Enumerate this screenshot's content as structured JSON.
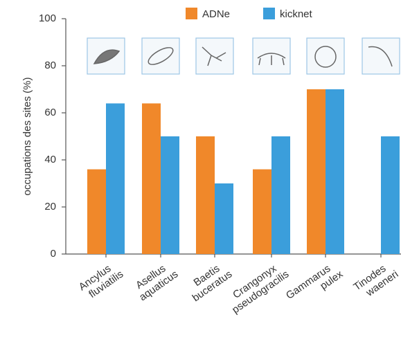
{
  "chart_data": {
    "type": "bar",
    "ylabel": "occupations des sites (%)",
    "categories": [
      "Ancylus fluviatilis",
      "Asellus aquaticus",
      "Baetis buceratus",
      "Crangonyx pseudogracilis",
      "Gammarus pulex",
      "Tinodes waeneri"
    ],
    "series": [
      {
        "name": "ADNe",
        "color": "#f0882a",
        "values": [
          36,
          64,
          50,
          36,
          70,
          0
        ]
      },
      {
        "name": "kicknet",
        "color": "#3b9edb",
        "values": [
          64,
          50,
          30,
          50,
          70,
          50
        ]
      }
    ],
    "ylim": [
      0,
      100
    ],
    "yticks": [
      0,
      20,
      40,
      60,
      80,
      100
    ],
    "legend": "top"
  }
}
